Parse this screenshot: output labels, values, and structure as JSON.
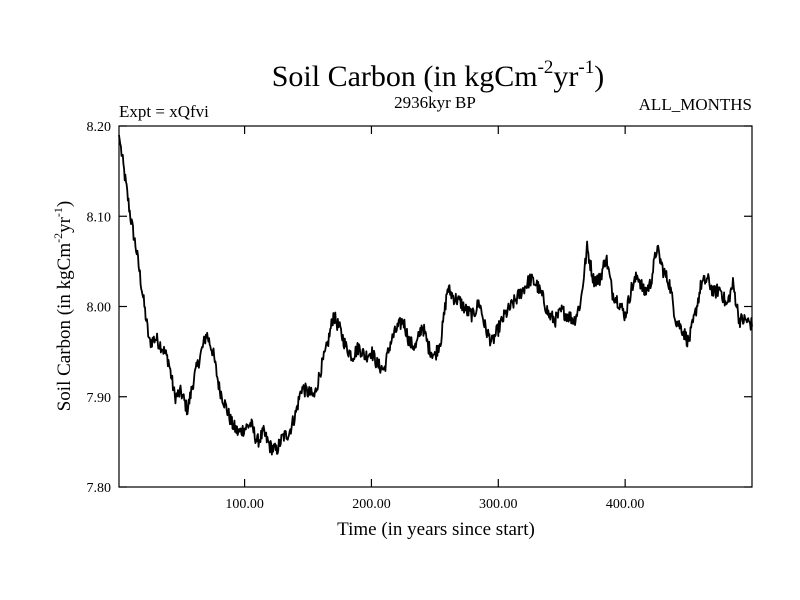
{
  "chart_data": {
    "type": "line",
    "title": {
      "prefix": "Soil Carbon (in kgCm",
      "exp1": "-2",
      "mid": "yr",
      "exp2": "-1",
      "suffix": ")"
    },
    "subtitle_left": "Expt = xQfvi",
    "subtitle_center": "2936kyr BP",
    "subtitle_right": "ALL_MONTHS",
    "xlabel": "Time (in years since start)",
    "ylabel": {
      "prefix": "Soil Carbon (in kgCm",
      "exp1": "-2",
      "mid": "yr",
      "exp2": "-1",
      "suffix": ")"
    },
    "xlim": [
      1,
      500
    ],
    "ylim": [
      7.8,
      8.2
    ],
    "xticks": [
      100,
      200,
      300,
      400
    ],
    "xtick_labels": [
      "100.00",
      "200.00",
      "300.00",
      "400.00"
    ],
    "yticks": [
      7.8,
      7.9,
      8.0,
      8.1,
      8.2
    ],
    "ytick_labels": [
      "7.80",
      "7.90",
      "8.00",
      "8.10",
      "8.20"
    ],
    "line_color": "#000000",
    "series": [
      {
        "name": "Soil Carbon",
        "x": [
          1,
          5,
          10,
          15,
          20,
          25,
          30,
          35,
          40,
          45,
          50,
          55,
          60,
          65,
          70,
          75,
          80,
          85,
          90,
          95,
          100,
          105,
          110,
          115,
          120,
          125,
          130,
          135,
          140,
          145,
          150,
          155,
          160,
          165,
          170,
          175,
          180,
          185,
          190,
          195,
          200,
          205,
          210,
          215,
          220,
          225,
          230,
          235,
          240,
          245,
          250,
          255,
          260,
          265,
          270,
          275,
          280,
          285,
          290,
          295,
          300,
          305,
          310,
          315,
          320,
          325,
          330,
          335,
          340,
          345,
          350,
          355,
          360,
          365,
          370,
          375,
          380,
          385,
          390,
          395,
          400,
          405,
          410,
          415,
          420,
          425,
          430,
          435,
          440,
          445,
          450,
          455,
          460,
          465,
          470,
          475,
          480,
          485,
          490,
          495,
          500
        ],
        "values": [
          8.19,
          8.15,
          8.1,
          8.06,
          8.01,
          7.96,
          7.965,
          7.955,
          7.94,
          7.9,
          7.905,
          7.885,
          7.92,
          7.945,
          7.97,
          7.95,
          7.91,
          7.89,
          7.87,
          7.86,
          7.865,
          7.87,
          7.85,
          7.86,
          7.845,
          7.84,
          7.855,
          7.86,
          7.88,
          7.91,
          7.905,
          7.9,
          7.93,
          7.955,
          7.99,
          7.975,
          7.955,
          7.945,
          7.955,
          7.945,
          7.95,
          7.935,
          7.93,
          7.96,
          7.975,
          7.985,
          7.96,
          7.955,
          7.98,
          7.955,
          7.945,
          7.965,
          8.02,
          8.01,
          8.005,
          7.995,
          7.99,
          8.005,
          7.975,
          7.96,
          7.975,
          7.99,
          8.0,
          8.01,
          8.02,
          8.03,
          8.025,
          8.01,
          7.99,
          7.985,
          7.995,
          7.99,
          7.985,
          8.005,
          8.065,
          8.03,
          8.03,
          8.055,
          8.015,
          8.005,
          7.99,
          8.02,
          8.035,
          8.015,
          8.025,
          8.065,
          8.04,
          8.025,
          7.985,
          7.975,
          7.96,
          7.99,
          8.025,
          8.03,
          8.015,
          8.02,
          8.0,
          8.025,
          7.985,
          7.985,
          7.98
        ]
      }
    ]
  }
}
